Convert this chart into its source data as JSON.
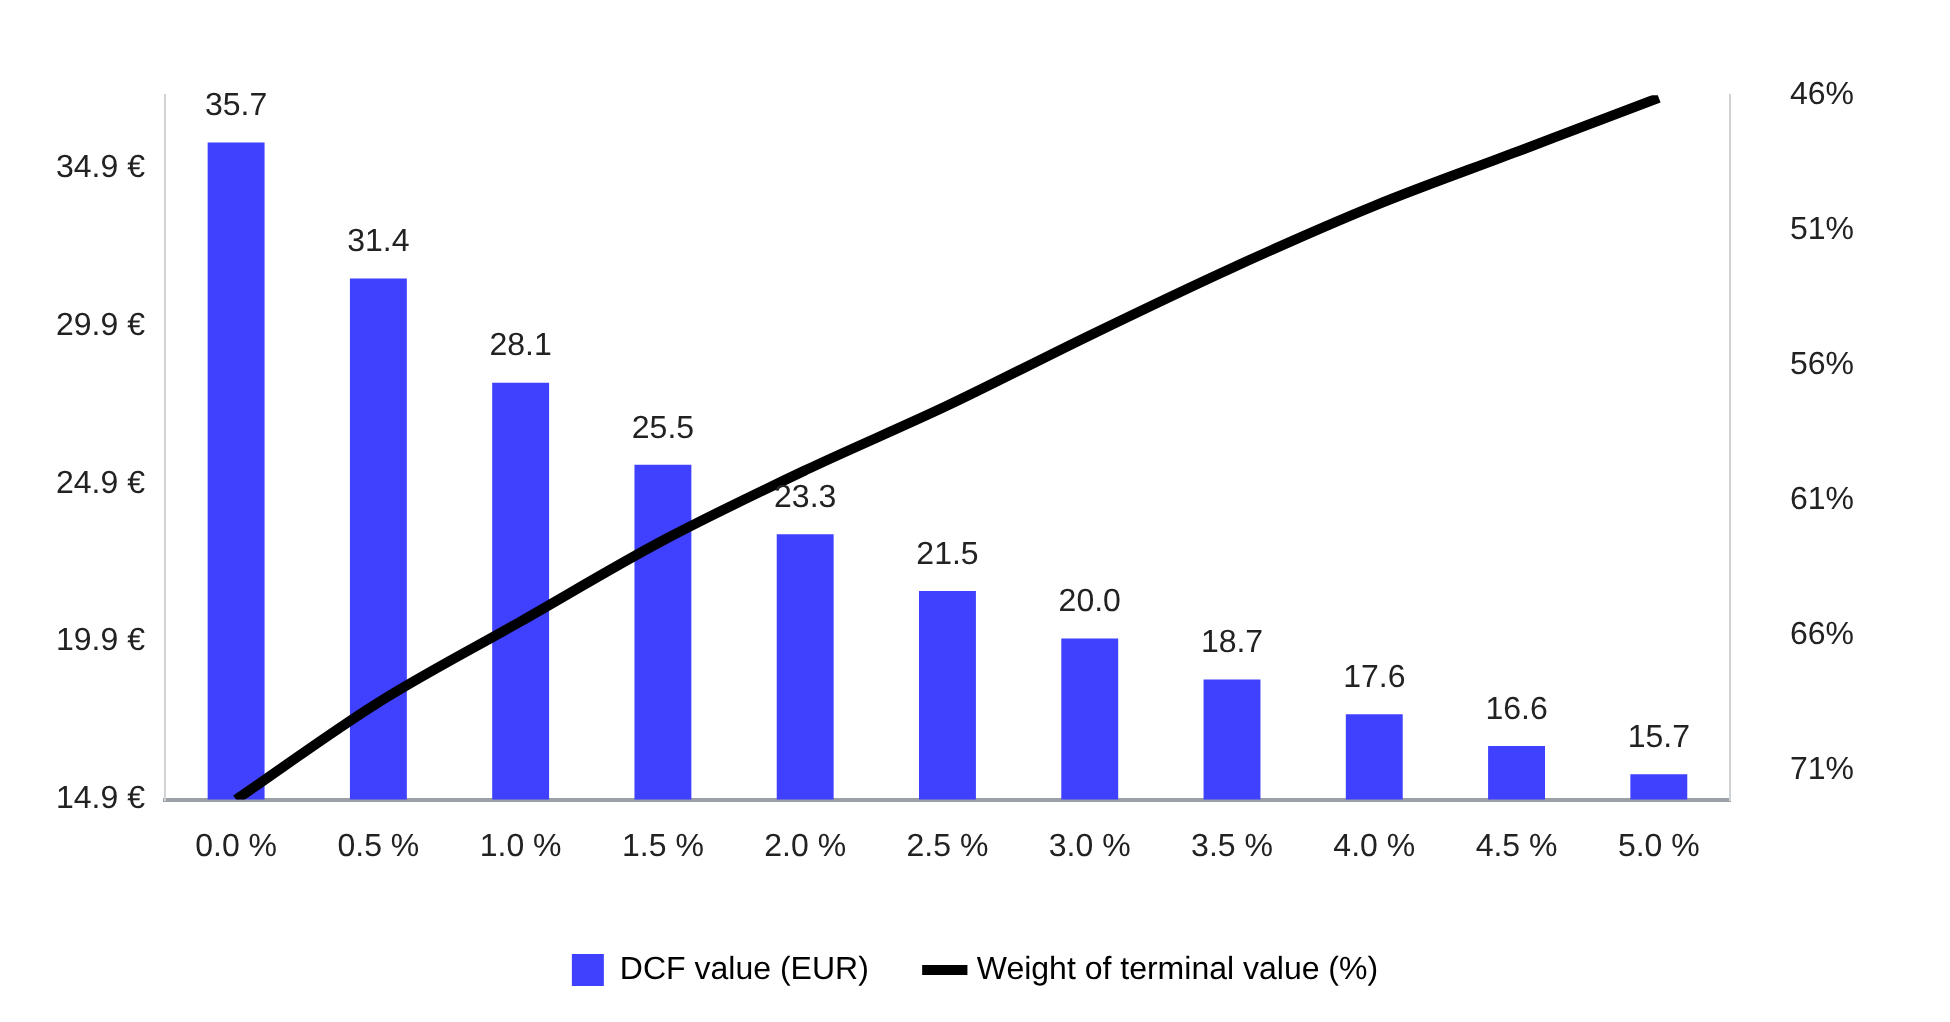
{
  "chart_data": {
    "type": "bar",
    "categories": [
      "0.0 %",
      "0.5 %",
      "1.0 %",
      "1.5 %",
      "2.0 %",
      "2.5 %",
      "3.0 %",
      "3.5 %",
      "4.0 %",
      "4.5 %",
      "5.0 %"
    ],
    "series": [
      {
        "name": "DCF value (EUR)",
        "color": "#4040ff",
        "values": [
          35.7,
          31.4,
          28.1,
          25.5,
          23.3,
          21.5,
          20.0,
          18.7,
          17.6,
          16.6,
          15.7
        ],
        "value_labels": [
          "35.7",
          "31.4",
          "28.1",
          "25.5",
          "23.3",
          "21.5",
          "20.0",
          "18.7",
          "17.6",
          "16.6",
          "15.7"
        ]
      },
      {
        "name": "Weight of terminal value (%)",
        "type": "line",
        "axis": "y2",
        "color": "#000000",
        "values": [
          72.1,
          68.5,
          65.5,
          62.5,
          59.9,
          57.5,
          54.9,
          52.4,
          50.1,
          48.1,
          46.1
        ]
      }
    ],
    "ylim": [
      14.9,
      37.2
    ],
    "yticks": [
      {
        "value": 14.9,
        "label": "14.9 €"
      },
      {
        "value": 19.9,
        "label": "19.9 €"
      },
      {
        "value": 24.9,
        "label": "24.9 €"
      },
      {
        "value": 29.9,
        "label": "29.9 €"
      },
      {
        "value": 34.9,
        "label": "34.9 €"
      }
    ],
    "y2lim": [
      72.1,
      46
    ],
    "y2ticks": [
      {
        "value": 46,
        "label": "46%"
      },
      {
        "value": 51,
        "label": "51%"
      },
      {
        "value": 56,
        "label": "56%"
      },
      {
        "value": 61,
        "label": "61%"
      },
      {
        "value": 66,
        "label": "66%"
      },
      {
        "value": 71,
        "label": "71%"
      }
    ],
    "grid": false,
    "legend": "bottom",
    "marker": "none",
    "line_style": "solid"
  }
}
